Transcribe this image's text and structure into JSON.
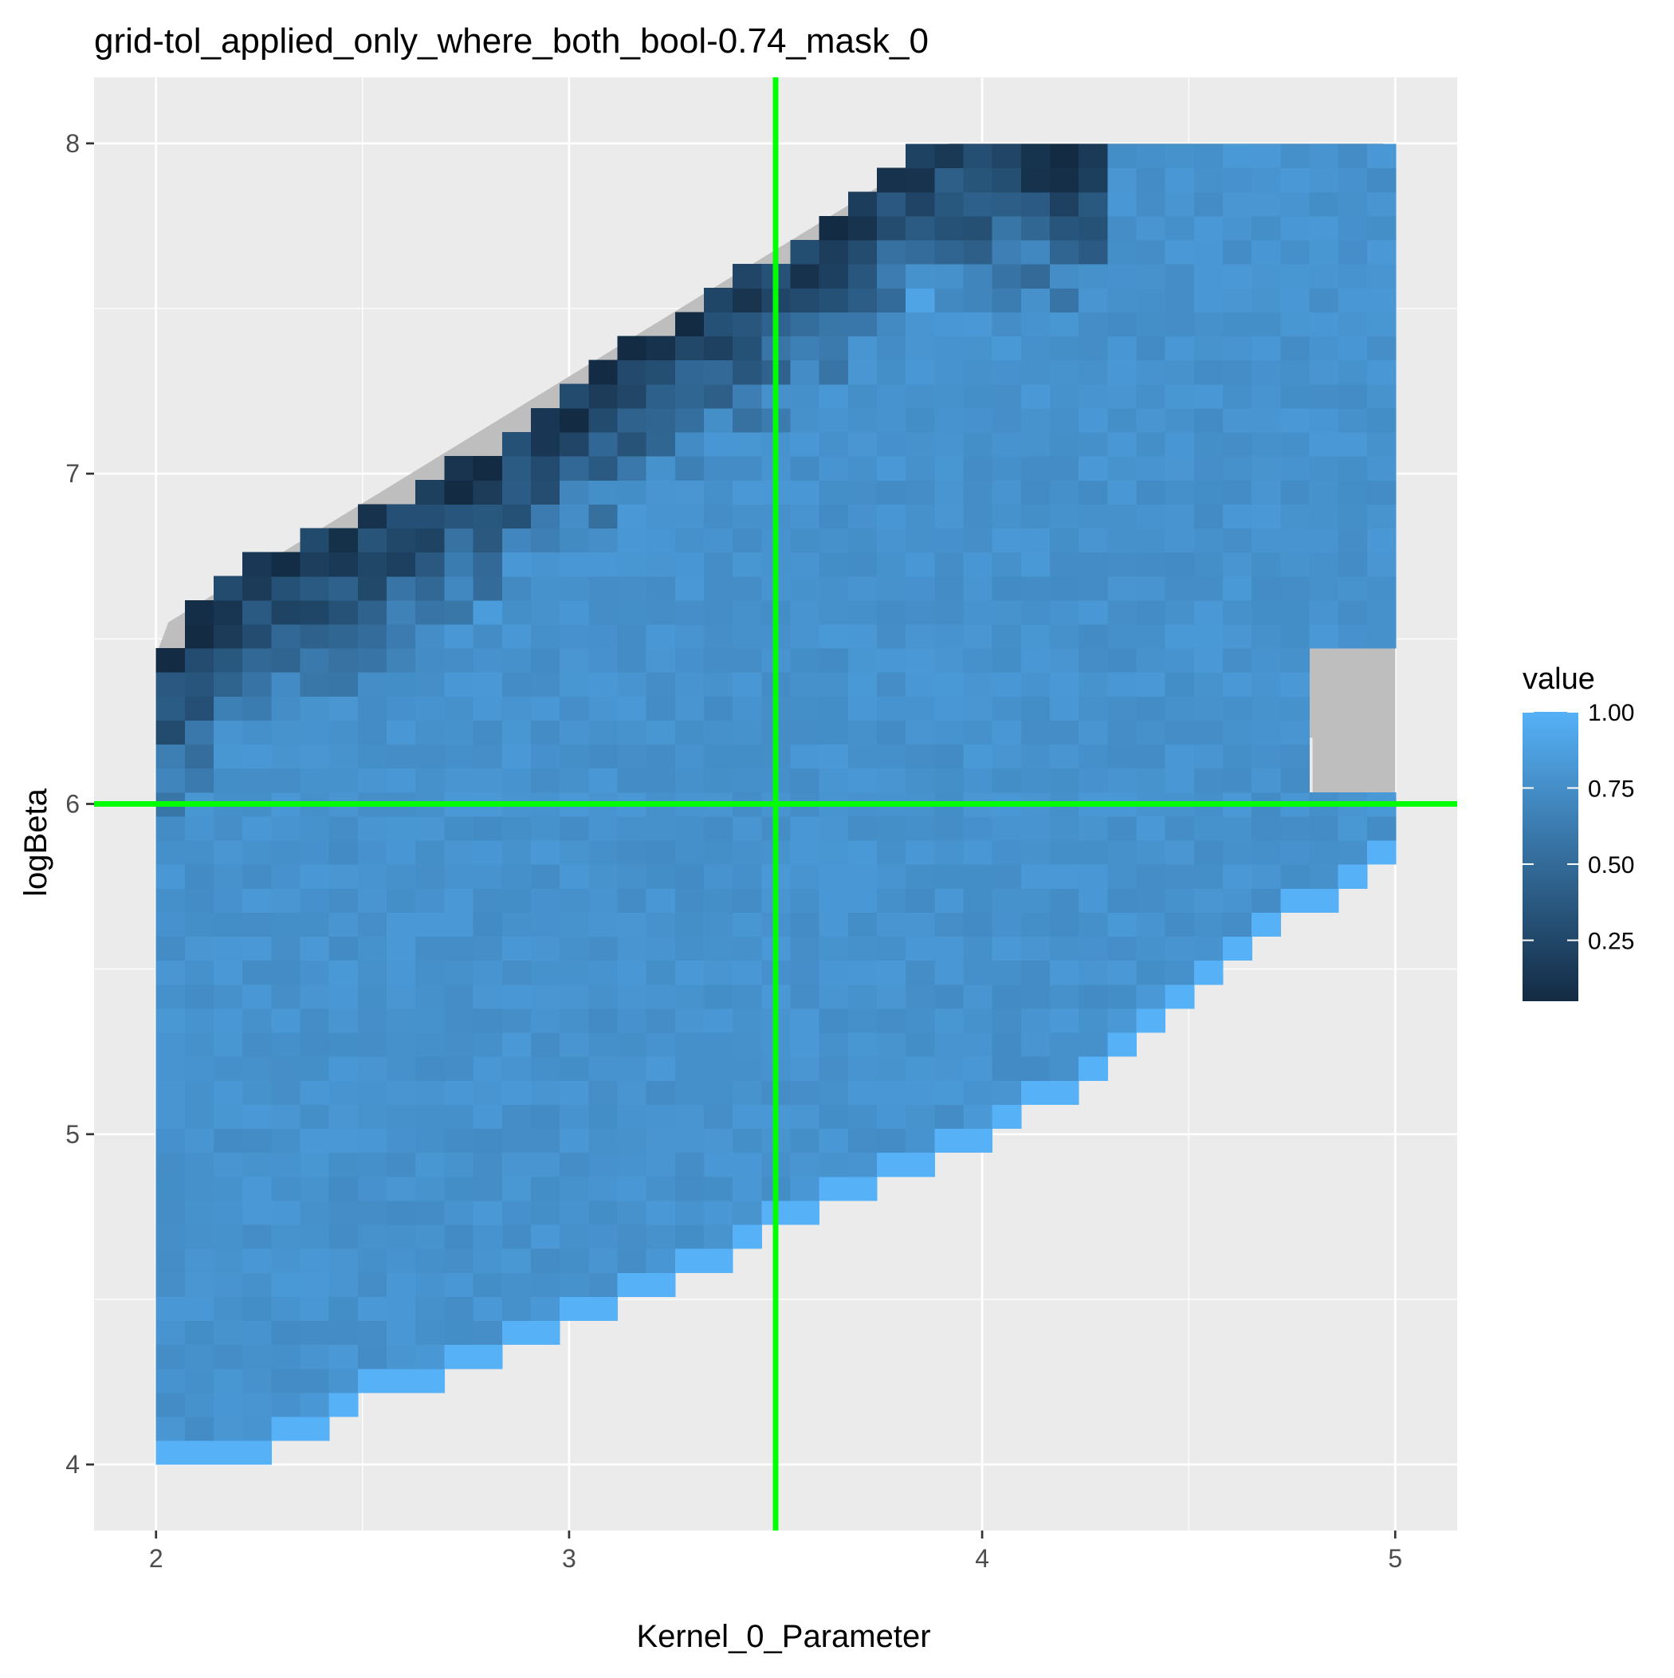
{
  "chart_data": {
    "type": "heatmap",
    "title": "grid-tol_applied_only_where_both_bool-0.74_mask_0",
    "xlabel": "Kernel_0_Parameter",
    "ylabel": "logBeta",
    "xlim": [
      1.85,
      5.15
    ],
    "ylim": [
      3.8,
      8.2
    ],
    "xticks": [
      2,
      3,
      4,
      5
    ],
    "yticks": [
      4,
      5,
      6,
      7,
      8
    ],
    "x_tick_labels": [
      "2",
      "3",
      "4",
      "5"
    ],
    "y_tick_labels": [
      "4",
      "5",
      "6",
      "7",
      "8"
    ],
    "grid": true,
    "legend": {
      "title": "value",
      "position": "right",
      "range": [
        0.05,
        1.0
      ],
      "breaks": [
        0.25,
        0.5,
        0.75,
        1.0
      ],
      "labels": [
        "0.25",
        "0.50",
        "0.75",
        "1.00"
      ],
      "color_low": "#132B43",
      "color_high": "#56B1F7"
    },
    "reference_lines": {
      "vertical_x": 3.5,
      "horizontal_y": 6.0,
      "color": "#00FF00"
    },
    "grey_region": {
      "color": "#BEBEBE",
      "polygon": [
        [
          2.0,
          6.45
        ],
        [
          2.03,
          6.55
        ],
        [
          3.92,
          8.0
        ],
        [
          4.97,
          8.0
        ],
        [
          5.0,
          7.96
        ],
        [
          5.0,
          6.0
        ],
        [
          4.8,
          6.0
        ],
        [
          4.8,
          6.2
        ]
      ]
    },
    "cell_size": {
      "dx": 0.0698,
      "dy": 0.0727
    },
    "region": {
      "x_range": [
        2.0,
        5.0
      ],
      "lower_boundary": [
        [
          2.0,
          4.0
        ],
        [
          2.2,
          4.03
        ],
        [
          2.5,
          4.2
        ],
        [
          3.0,
          4.45
        ],
        [
          3.5,
          4.72
        ],
        [
          4.05,
          5.02
        ],
        [
          4.5,
          5.42
        ],
        [
          5.0,
          5.9
        ]
      ],
      "upper_boundary": [
        [
          2.0,
          6.42
        ],
        [
          2.2,
          6.7
        ],
        [
          2.7,
          6.98
        ],
        [
          3.2,
          7.42
        ],
        [
          3.7,
          7.8
        ],
        [
          3.85,
          8.0
        ],
        [
          5.0,
          8.0
        ]
      ],
      "bulk_value": 0.78,
      "edge_value": 1.0,
      "dark_band_width": 0.5,
      "grey_cutout": {
        "x_from": 4.8,
        "y_from": 6.0,
        "y_to": 6.45
      }
    }
  }
}
